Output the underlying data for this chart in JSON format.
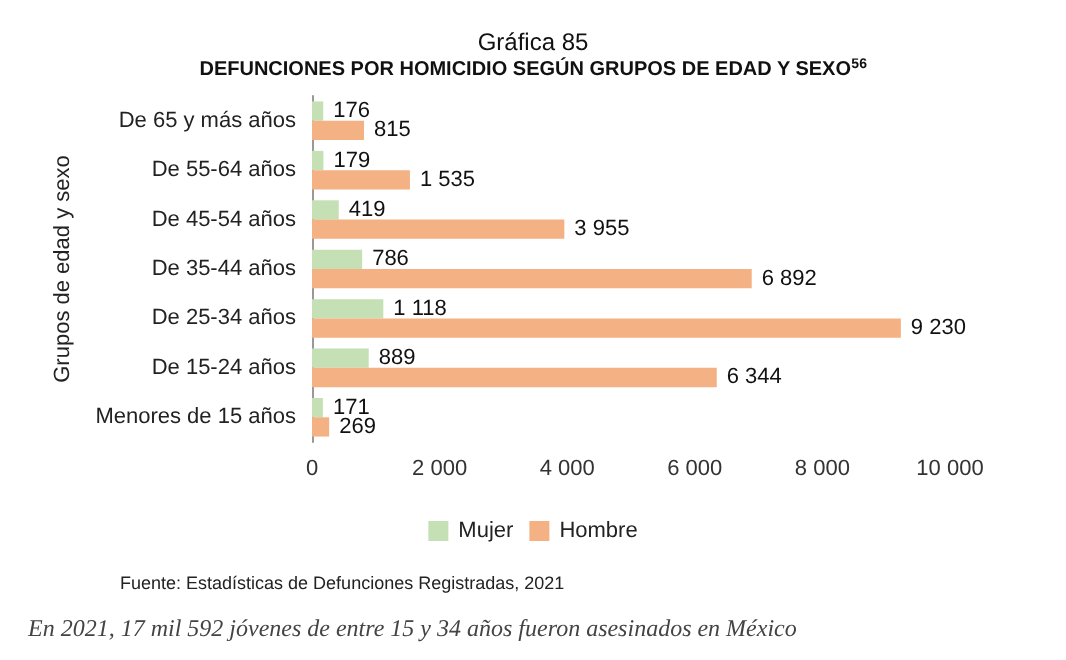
{
  "chart_data": {
    "type": "bar",
    "orientation": "horizontal",
    "title": "Gráfica 85",
    "subtitle": "DEFUNCIONES POR HOMICIDIO SEGÚN GRUPOS DE EDAD Y SEXO$^{56}$",
    "ylabel": "Grupos de edad y sexo",
    "categories": [
      "De 65 y más años",
      "De 55-64 años",
      "De 45-54 años",
      "De 35-44 años",
      "De 25-34 años",
      "De 15-24 años",
      "Menores de 15 años"
    ],
    "series": [
      {
        "name": "Mujer",
        "color": "#c5e0b4",
        "values": [
          176,
          179,
          419,
          786,
          1118,
          889,
          171
        ],
        "value_labels": [
          "176",
          "179",
          "419",
          "786",
          "1 118",
          "889",
          "171"
        ]
      },
      {
        "name": "Hombre",
        "color": "#f4b183",
        "values": [
          815,
          1535,
          3955,
          6892,
          9230,
          6344,
          269
        ],
        "value_labels": [
          "815",
          "1 535",
          "3 955",
          "6 892",
          "9 230",
          "6 344",
          "269"
        ]
      }
    ],
    "xlim": [
      0,
      10000
    ],
    "xticks": [
      0,
      {
        "value": 2000,
        "label": "2 000"
      },
      {
        "value": 4000,
        "label": "4 000"
      },
      {
        "value": 6000,
        "label": "6 000"
      },
      {
        "value": 8000,
        "label": "8 000"
      },
      {
        "value": 10000,
        "label": "10 000"
      }
    ],
    "grid": false,
    "legend": "bottom",
    "annotations": [
      "Fuente: Estadísticas de Defunciones Registradas, 2021",
      "En 2021, 17 mil 592 jóvenes de entre 15 y 34 años fueron asesinados en México"
    ]
  }
}
